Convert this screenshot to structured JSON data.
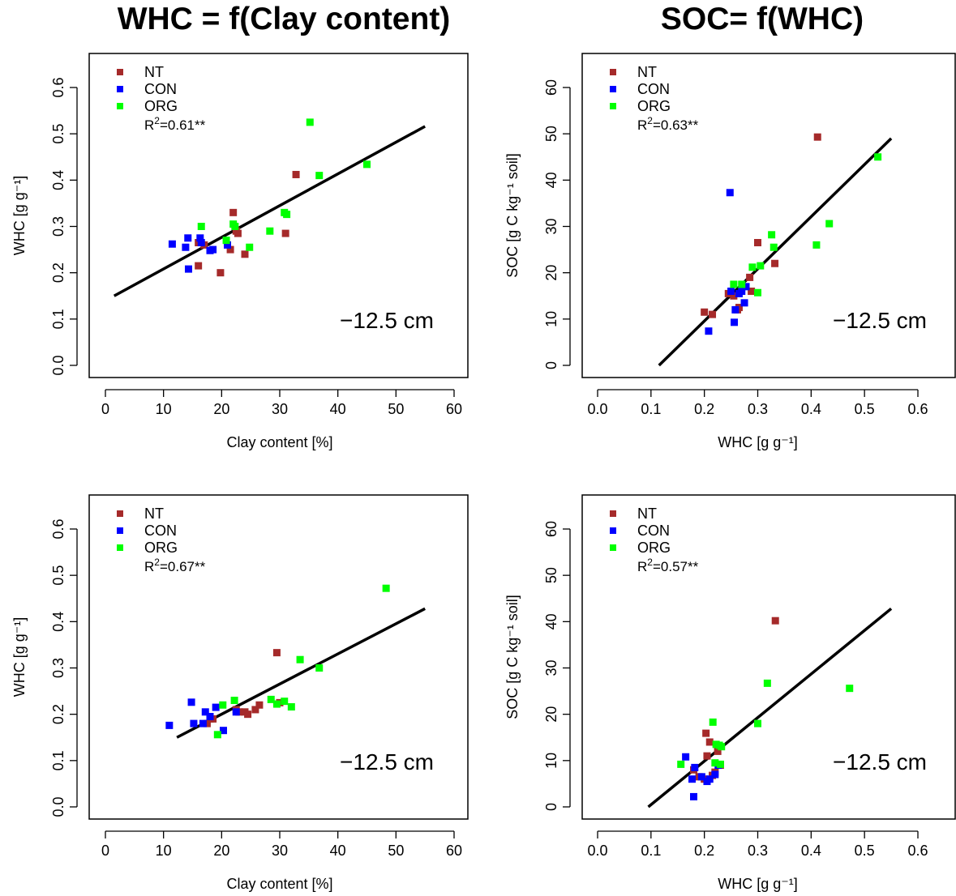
{
  "titles": {
    "left": "WHC = f(Clay content)",
    "right": "SOC= f(WHC)"
  },
  "legend_labels": [
    "NT",
    "CON",
    "ORG"
  ],
  "colors": {
    "NT": "#a52a2a",
    "CON": "#0000ff",
    "ORG": "#00ff00",
    "line": "#000000"
  },
  "chart_data": [
    {
      "type": "scatter",
      "panel": "top-left",
      "xlabel": "Clay content [%]",
      "ylabel": "WHC [g g⁻¹]",
      "xlim": [
        0,
        60
      ],
      "ylim": [
        0,
        0.6
      ],
      "xticks": [
        "0",
        "10",
        "20",
        "30",
        "40",
        "50",
        "60"
      ],
      "yticks": [
        "0.0",
        "0.1",
        "0.2",
        "0.3",
        "0.4",
        "0.5",
        "0.6"
      ],
      "xtick_values": [
        0,
        10,
        20,
        30,
        40,
        50,
        60
      ],
      "ytick_values": [
        0,
        0.1,
        0.2,
        0.3,
        0.4,
        0.5,
        0.6
      ],
      "r2": "0.61**",
      "annotation": "−12.5 cm",
      "legend": "top-left",
      "grid": false,
      "fit": {
        "x": [
          1.5,
          55
        ],
        "y": [
          0.15,
          0.516
        ]
      },
      "series": [
        {
          "name": "NT",
          "points": [
            [
              16,
              0.265
            ],
            [
              16,
              0.215
            ],
            [
              17,
              0.26
            ],
            [
              19.8,
              0.2
            ],
            [
              21.5,
              0.25
            ],
            [
              22,
              0.33
            ],
            [
              22.5,
              0.29
            ],
            [
              22.8,
              0.285
            ],
            [
              24,
              0.24
            ],
            [
              31,
              0.285
            ],
            [
              32.8,
              0.412
            ]
          ]
        },
        {
          "name": "CON",
          "points": [
            [
              11.5,
              0.262
            ],
            [
              13.8,
              0.255
            ],
            [
              14.2,
              0.275
            ],
            [
              14.3,
              0.208
            ],
            [
              16.3,
              0.275
            ],
            [
              16.5,
              0.265
            ],
            [
              18,
              0.248
            ],
            [
              18.5,
              0.25
            ],
            [
              21,
              0.26
            ]
          ]
        },
        {
          "name": "ORG",
          "points": [
            [
              16.5,
              0.3
            ],
            [
              20.8,
              0.27
            ],
            [
              22,
              0.305
            ],
            [
              22.3,
              0.3
            ],
            [
              24.8,
              0.255
            ],
            [
              28.3,
              0.29
            ],
            [
              30.8,
              0.33
            ],
            [
              31.2,
              0.326
            ],
            [
              35.2,
              0.525
            ],
            [
              36.8,
              0.41
            ],
            [
              45,
              0.434
            ]
          ]
        }
      ]
    },
    {
      "type": "scatter",
      "panel": "top-right",
      "xlabel": "WHC [g g⁻¹]",
      "ylabel": "SOC [g C kg⁻¹ soil]",
      "xlim": [
        0,
        0.6
      ],
      "ylim": [
        0,
        60
      ],
      "xticks": [
        "0.0",
        "0.1",
        "0.2",
        "0.3",
        "0.4",
        "0.5",
        "0.6"
      ],
      "yticks": [
        "0",
        "10",
        "20",
        "30",
        "40",
        "50",
        "60"
      ],
      "xtick_values": [
        0,
        0.1,
        0.2,
        0.3,
        0.4,
        0.5,
        0.6
      ],
      "ytick_values": [
        0,
        10,
        20,
        30,
        40,
        50,
        60
      ],
      "r2": "0.63**",
      "annotation": "−12.5 cm",
      "legend": "top-left",
      "grid": false,
      "fit": {
        "x": [
          0.115,
          0.55
        ],
        "y": [
          0,
          49
        ]
      },
      "series": [
        {
          "name": "NT",
          "points": [
            [
              0.2,
              11.5
            ],
            [
              0.215,
              11
            ],
            [
              0.245,
              15.5
            ],
            [
              0.255,
              15
            ],
            [
              0.262,
              12
            ],
            [
              0.265,
              12.5
            ],
            [
              0.285,
              19
            ],
            [
              0.288,
              16
            ],
            [
              0.3,
              26.5
            ],
            [
              0.332,
              22
            ],
            [
              0.412,
              49.3
            ]
          ]
        },
        {
          "name": "CON",
          "points": [
            [
              0.208,
              7.4
            ],
            [
              0.248,
              37.3
            ],
            [
              0.25,
              16
            ],
            [
              0.256,
              9.3
            ],
            [
              0.258,
              12
            ],
            [
              0.265,
              15.5
            ],
            [
              0.27,
              16
            ],
            [
              0.275,
              13.5
            ],
            [
              0.278,
              17
            ]
          ]
        },
        {
          "name": "ORG",
          "points": [
            [
              0.255,
              17.5
            ],
            [
              0.27,
              17.5
            ],
            [
              0.29,
              21.2
            ],
            [
              0.3,
              15.7
            ],
            [
              0.305,
              21.5
            ],
            [
              0.326,
              28.2
            ],
            [
              0.33,
              25.5
            ],
            [
              0.41,
              26
            ],
            [
              0.434,
              30.6
            ],
            [
              0.525,
              45
            ]
          ]
        }
      ]
    },
    {
      "type": "scatter",
      "panel": "bottom-left",
      "xlabel": "Clay content [%]",
      "ylabel": "WHC [g g⁻¹]",
      "xlim": [
        0,
        60
      ],
      "ylim": [
        0,
        0.6
      ],
      "xticks": [
        "0",
        "10",
        "20",
        "30",
        "40",
        "50",
        "60"
      ],
      "yticks": [
        "0.0",
        "0.1",
        "0.2",
        "0.3",
        "0.4",
        "0.5",
        "0.6"
      ],
      "xtick_values": [
        0,
        10,
        20,
        30,
        40,
        50,
        60
      ],
      "ytick_values": [
        0,
        0.1,
        0.2,
        0.3,
        0.4,
        0.5,
        0.6
      ],
      "r2": "0.67**",
      "annotation": "−12.5 cm",
      "legend": "top-left",
      "grid": false,
      "fit": {
        "x": [
          12.3,
          55
        ],
        "y": [
          0.15,
          0.428
        ]
      },
      "series": [
        {
          "name": "NT",
          "points": [
            [
              17.5,
              0.18
            ],
            [
              18,
              0.19
            ],
            [
              18.5,
              0.19
            ],
            [
              22.5,
              0.21
            ],
            [
              23,
              0.205
            ],
            [
              24,
              0.205
            ],
            [
              24.5,
              0.2
            ],
            [
              25.8,
              0.21
            ],
            [
              26.5,
              0.22
            ],
            [
              29.5,
              0.333
            ],
            [
              30,
              0.225
            ]
          ]
        },
        {
          "name": "CON",
          "points": [
            [
              11,
              0.176
            ],
            [
              14.8,
              0.226
            ],
            [
              15.2,
              0.18
            ],
            [
              16.8,
              0.18
            ],
            [
              17.2,
              0.205
            ],
            [
              18,
              0.195
            ],
            [
              19,
              0.215
            ],
            [
              20.3,
              0.165
            ],
            [
              22.5,
              0.205
            ]
          ]
        },
        {
          "name": "ORG",
          "points": [
            [
              19.3,
              0.156
            ],
            [
              20.2,
              0.22
            ],
            [
              22.2,
              0.23
            ],
            [
              28.5,
              0.232
            ],
            [
              29.5,
              0.222
            ],
            [
              30.8,
              0.228
            ],
            [
              32,
              0.216
            ],
            [
              33.5,
              0.318
            ],
            [
              36.8,
              0.3
            ],
            [
              48.3,
              0.472
            ]
          ]
        }
      ]
    },
    {
      "type": "scatter",
      "panel": "bottom-right",
      "xlabel": "WHC [g g⁻¹]",
      "ylabel": "SOC [g C kg⁻¹ soil]",
      "xlim": [
        0,
        0.6
      ],
      "ylim": [
        0,
        60
      ],
      "xticks": [
        "0.0",
        "0.1",
        "0.2",
        "0.3",
        "0.4",
        "0.5",
        "0.6"
      ],
      "yticks": [
        "0",
        "10",
        "20",
        "30",
        "40",
        "50",
        "60"
      ],
      "xtick_values": [
        0,
        0.1,
        0.2,
        0.3,
        0.4,
        0.5,
        0.6
      ],
      "ytick_values": [
        0,
        10,
        20,
        30,
        40,
        50,
        60
      ],
      "r2": "0.57**",
      "annotation": "−12.5 cm",
      "legend": "top-left",
      "grid": false,
      "fit": {
        "x": [
          0.095,
          0.55
        ],
        "y": [
          0,
          42.8
        ]
      },
      "series": [
        {
          "name": "NT",
          "points": [
            [
              0.18,
              8
            ],
            [
              0.19,
              6.5
            ],
            [
              0.2,
              6
            ],
            [
              0.203,
              15.9
            ],
            [
              0.205,
              11
            ],
            [
              0.21,
              14
            ],
            [
              0.215,
              6.8
            ],
            [
              0.22,
              7.5
            ],
            [
              0.225,
              12
            ],
            [
              0.23,
              9
            ],
            [
              0.333,
              40.2
            ]
          ]
        },
        {
          "name": "CON",
          "points": [
            [
              0.165,
              10.8
            ],
            [
              0.177,
              6
            ],
            [
              0.18,
              2.2
            ],
            [
              0.182,
              8.5
            ],
            [
              0.195,
              6.5
            ],
            [
              0.205,
              5.5
            ],
            [
              0.21,
              6
            ],
            [
              0.22,
              7
            ],
            [
              0.226,
              9
            ]
          ]
        },
        {
          "name": "ORG",
          "points": [
            [
              0.156,
              9.2
            ],
            [
              0.216,
              18.3
            ],
            [
              0.22,
              9.5
            ],
            [
              0.222,
              13.5
            ],
            [
              0.228,
              13.3
            ],
            [
              0.23,
              9.2
            ],
            [
              0.232,
              13
            ],
            [
              0.3,
              18
            ],
            [
              0.318,
              26.7
            ],
            [
              0.472,
              25.6
            ]
          ]
        }
      ]
    }
  ]
}
